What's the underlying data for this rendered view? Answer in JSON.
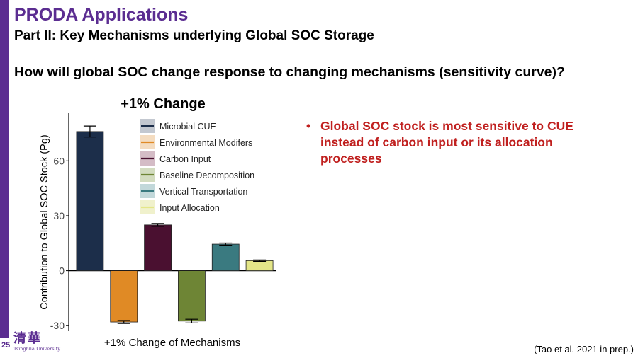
{
  "slide": {
    "number": "25",
    "title": "PRODA Applications",
    "subtitle": "Part II: Key Mechanisms underlying Global SOC Storage",
    "question": "How will global SOC change response to changing mechanisms (sensitivity curve)?",
    "bullet": "Global SOC stock is most sensitive to CUE instead of carbon input or its allocation processes",
    "bullet_marker": "•",
    "citation": "(Tao et al. 2021 in prep.)",
    "logo": {
      "glyph": "清華",
      "text": "Tsinghua University"
    }
  },
  "colors": {
    "brand_purple": "#5b2d91",
    "bullet_red": "#c0201f"
  },
  "chart_data": {
    "type": "bar",
    "title": "+1% Change",
    "xlabel": "+1% Change of Mechanisms",
    "ylabel": "Contribution to Global SOC Stock (Pg)",
    "ylim": [
      -33,
      86
    ],
    "yticks": [
      -30,
      0,
      30,
      60
    ],
    "legend_position": "top-right",
    "series": [
      {
        "name": "Microbial CUE",
        "value": 76,
        "error": 3,
        "color": "#1c2e4a",
        "light": "#c3c8d0"
      },
      {
        "name": "Environmental Modifers",
        "value": -28,
        "error": 0.8,
        "color": "#e08a25",
        "light": "#f4dcc0"
      },
      {
        "name": "Carbon Input",
        "value": 25,
        "error": 0.8,
        "color": "#4a1030",
        "light": "#d4bcc6"
      },
      {
        "name": "Baseline Decomposition",
        "value": -27.5,
        "error": 1,
        "color": "#6e8535",
        "light": "#d3dcc0"
      },
      {
        "name": "Vertical Transportation",
        "value": 14.5,
        "error": 0.6,
        "color": "#3a7a80",
        "light": "#c2d8da"
      },
      {
        "name": "Input Allocation",
        "value": 5.5,
        "error": 0.4,
        "color": "#e4e688",
        "light": "#f0f1cc"
      }
    ]
  }
}
